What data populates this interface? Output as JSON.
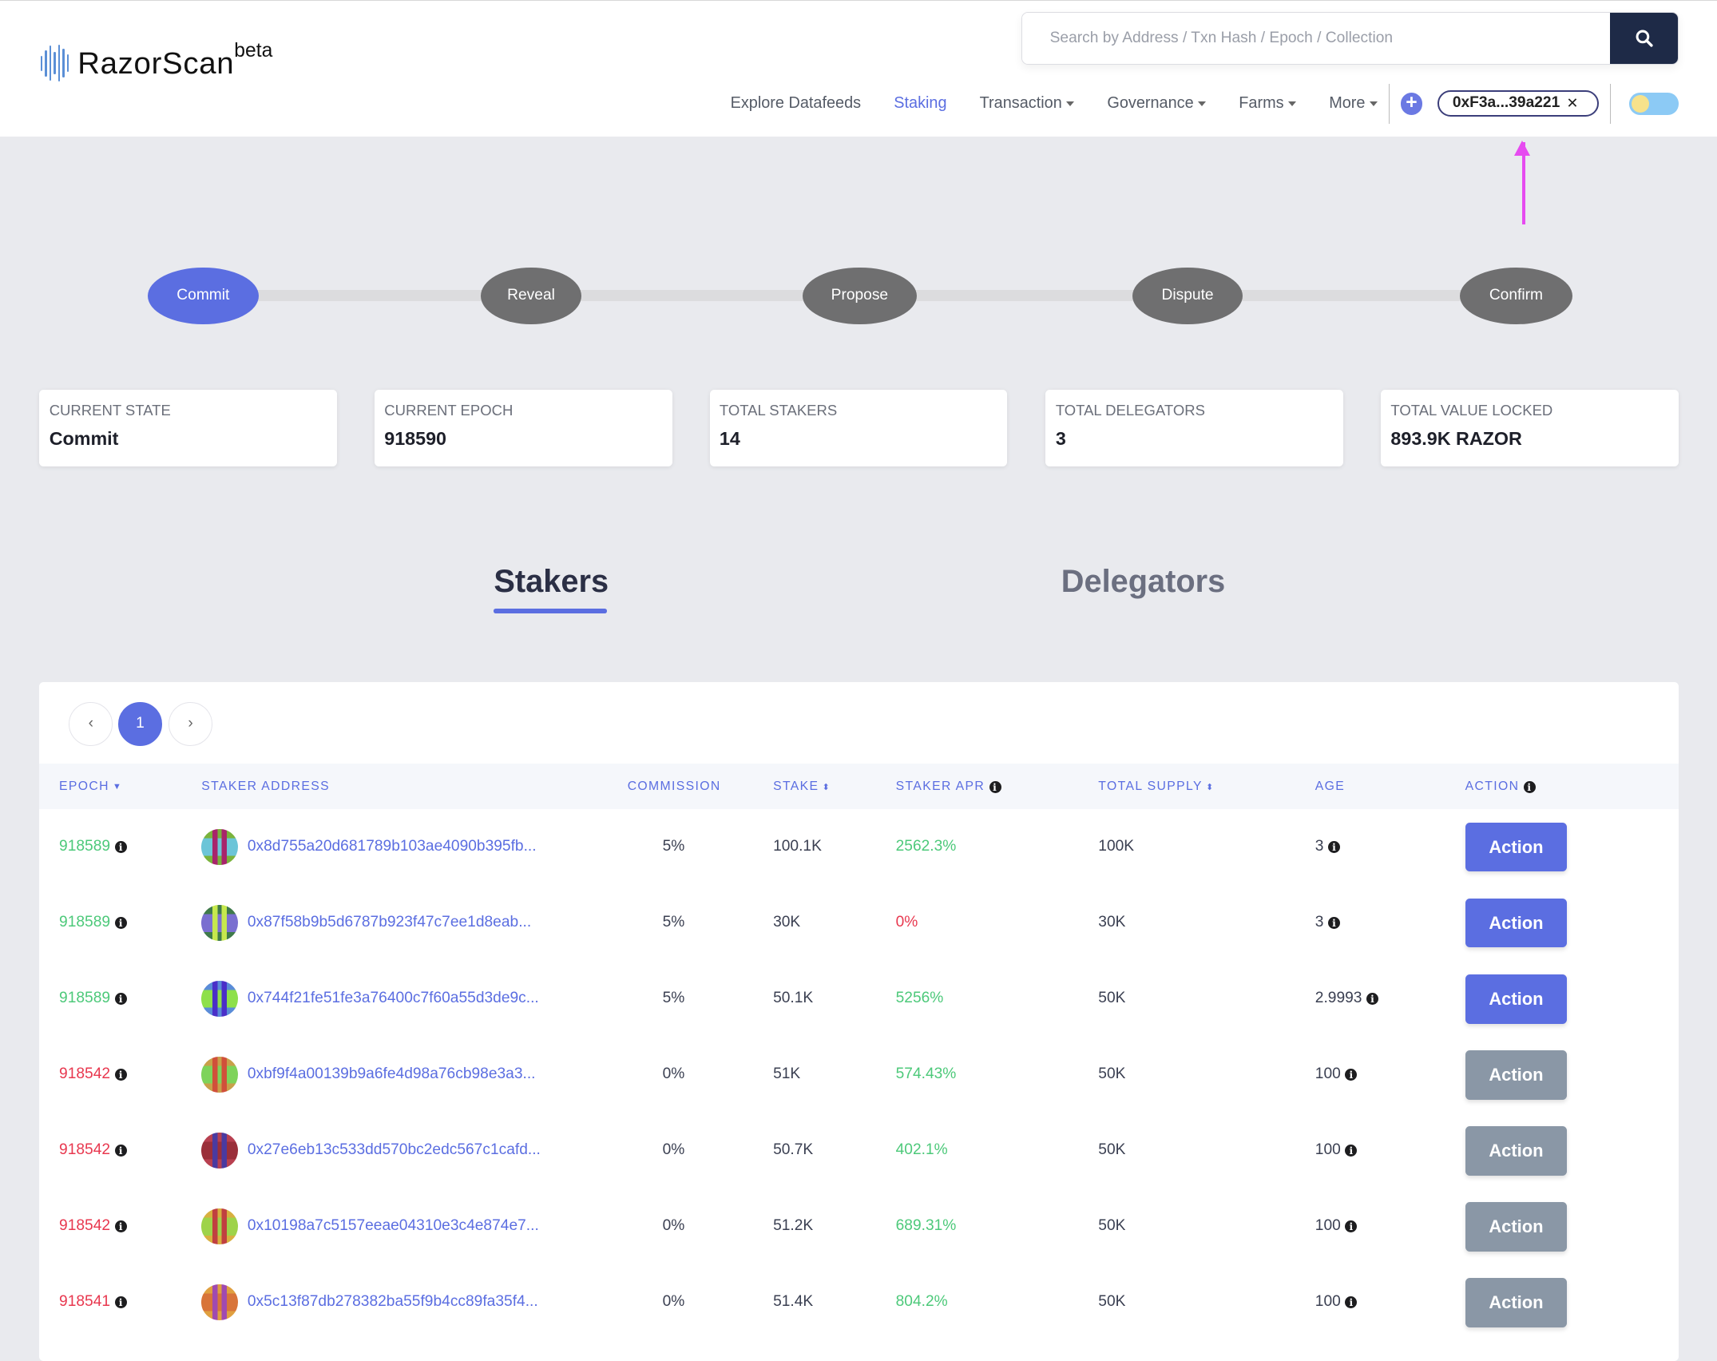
{
  "header": {
    "logo_text": "RazorScan",
    "logo_badge": "beta",
    "search_placeholder": "Search by Address / Txn Hash / Epoch / Collection",
    "nav": [
      {
        "label": "Explore Datafeeds",
        "active": false,
        "dropdown": false
      },
      {
        "label": "Staking",
        "active": true,
        "dropdown": false
      },
      {
        "label": "Transaction",
        "active": false,
        "dropdown": true
      },
      {
        "label": "Governance",
        "active": false,
        "dropdown": true
      },
      {
        "label": "Farms",
        "active": false,
        "dropdown": true
      },
      {
        "label": "More",
        "active": false,
        "dropdown": true
      }
    ],
    "wallet_address": "0xF3a...39a221",
    "close_glyph": "✕"
  },
  "steps": [
    {
      "label": "Commit",
      "active": true
    },
    {
      "label": "Reveal",
      "active": false
    },
    {
      "label": "Propose",
      "active": false
    },
    {
      "label": "Dispute",
      "active": false
    },
    {
      "label": "Confirm",
      "active": false
    }
  ],
  "stats": [
    {
      "label": "Current State",
      "value": "Commit"
    },
    {
      "label": "Current Epoch",
      "value": "918590"
    },
    {
      "label": "Total Stakers",
      "value": "14"
    },
    {
      "label": "Total Delegators",
      "value": "3"
    },
    {
      "label": "Total Value Locked",
      "value": "893.9K RAZOR"
    }
  ],
  "tabs": {
    "stakers": "Stakers",
    "delegators": "Delegators",
    "active": "stakers"
  },
  "pagination": {
    "prev": "‹",
    "current": "1",
    "next": "›"
  },
  "table": {
    "columns": {
      "epoch": "EPOCH",
      "address": "STAKER ADDRESS",
      "commission": "COMMISSION",
      "stake": "STAKE",
      "apr": "STAKER APR",
      "supply": "TOTAL SUPPLY",
      "age": "AGE",
      "action": "ACTION"
    },
    "action_label": "Action",
    "rows": [
      {
        "epoch": "918589",
        "epoch_status": "current",
        "address": "0x8d755a20d681789b103ae4090b395fb...",
        "commission": "5%",
        "stake": "100.1K",
        "apr": "2562.3%",
        "apr_status": "positive",
        "supply": "100K",
        "age": "3",
        "action_enabled": true,
        "avatar_colors": [
          "#6cc5d8",
          "#a8246b",
          "#7ab33c"
        ]
      },
      {
        "epoch": "918589",
        "epoch_status": "current",
        "address": "0x87f58b9b5d6787b923f47c7ee1d8eab...",
        "commission": "5%",
        "stake": "30K",
        "apr": "0%",
        "apr_status": "zero",
        "supply": "30K",
        "age": "3",
        "action_enabled": true,
        "avatar_colors": [
          "#7a6fd0",
          "#c6e84d",
          "#3f7a4a"
        ]
      },
      {
        "epoch": "918589",
        "epoch_status": "current",
        "address": "0x744f21fe51fe3a76400c7f60a55d3de9c...",
        "commission": "5%",
        "stake": "50.1K",
        "apr": "5256%",
        "apr_status": "positive",
        "supply": "50K",
        "age": "2.9993",
        "action_enabled": true,
        "avatar_colors": [
          "#8ee04a",
          "#4a2fc8",
          "#5a8cd8"
        ]
      },
      {
        "epoch": "918542",
        "epoch_status": "old",
        "address": "0xbf9f4a00139b9a6fe4d98a76cb98e3a3...",
        "commission": "0%",
        "stake": "51K",
        "apr": "574.43%",
        "apr_status": "positive",
        "supply": "50K",
        "age": "100",
        "action_enabled": false,
        "avatar_colors": [
          "#7ed35a",
          "#d0503a",
          "#c9a04a"
        ]
      },
      {
        "epoch": "918542",
        "epoch_status": "old",
        "address": "0x27e6eb13c533dd570bc2edc567c1cafd...",
        "commission": "0%",
        "stake": "50.7K",
        "apr": "402.1%",
        "apr_status": "positive",
        "supply": "50K",
        "age": "100",
        "action_enabled": false,
        "avatar_colors": [
          "#9a2f3a",
          "#4a3aa0",
          "#b84050"
        ]
      },
      {
        "epoch": "918542",
        "epoch_status": "old",
        "address": "0x10198a7c5157eeae04310e3c4e874e7...",
        "commission": "0%",
        "stake": "51.2K",
        "apr": "689.31%",
        "apr_status": "positive",
        "supply": "50K",
        "age": "100",
        "action_enabled": false,
        "avatar_colors": [
          "#9ed34a",
          "#c04040",
          "#d8b040"
        ]
      },
      {
        "epoch": "918541",
        "epoch_status": "old",
        "address": "0x5c13f87db278382ba55f9b4cc89fa35f4...",
        "commission": "0%",
        "stake": "51.4K",
        "apr": "804.2%",
        "apr_status": "positive",
        "supply": "50K",
        "age": "100",
        "action_enabled": false,
        "avatar_colors": [
          "#d8743a",
          "#a04ab0",
          "#e0a040"
        ]
      }
    ]
  },
  "colors": {
    "accent": "#5b6ee1",
    "positive": "#4dc97a",
    "negative": "#e8384f",
    "disabled_button": "#8a97a6",
    "search_button": "#1e2a47"
  }
}
